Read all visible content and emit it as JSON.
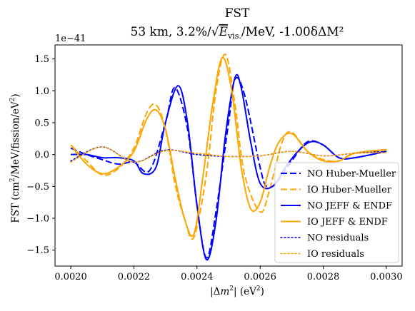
{
  "chart_data": {
    "type": "line",
    "title": "FST",
    "subtitle": "53 km, 3.2%/√E_vis./MeV, -1.00δΔM²",
    "subtitle_parts": {
      "prefix": "53 km, 3.2%/",
      "radicand_var": "E",
      "radicand_sub": "vis.",
      "radicand_unit": "/MeV",
      "suffix": ", -1.00δΔM²"
    },
    "xlabel": "|Δm²| (eV²)",
    "ylabel": "FST (cm²/MeV/fission/eV²)",
    "offset_text": "1e−41",
    "xlim": [
      0.00195,
      0.00305
    ],
    "ylim": [
      -1.75,
      1.72
    ],
    "x_ticks": [
      "0.0020",
      "0.0022",
      "0.0024",
      "0.0026",
      "0.0028",
      "0.0030"
    ],
    "x_tick_values": [
      0.002,
      0.0022,
      0.0024,
      0.0026,
      0.0028,
      0.003
    ],
    "y_ticks": [
      "−1.5",
      "−1.0",
      "−0.5",
      "0.0",
      "0.5",
      "1.0",
      "1.5"
    ],
    "y_tick_values": [
      -1.5,
      -1.0,
      -0.5,
      0.0,
      0.5,
      1.0,
      1.5
    ],
    "grid": false,
    "legend_position": "lower-right",
    "series": [
      {
        "name": "NO Huber-Mueller",
        "color": "#0000ff",
        "style": "dashed",
        "x": [
          0.002,
          0.00205,
          0.0021,
          0.00215,
          0.0022,
          0.00225,
          0.0023,
          0.00233,
          0.00237,
          0.0024,
          0.00243,
          0.00246,
          0.0025,
          0.00252,
          0.00255,
          0.0026,
          0.00262,
          0.00265,
          0.0027,
          0.00275,
          0.0028,
          0.00285,
          0.0029,
          0.003
        ],
        "y": [
          0.1,
          0.0,
          -0.08,
          -0.15,
          -0.12,
          -0.25,
          0.5,
          1.05,
          0.4,
          -0.8,
          -1.62,
          -0.9,
          0.5,
          1.18,
          0.95,
          -0.2,
          -0.5,
          -0.45,
          -0.1,
          0.2,
          0.15,
          -0.05,
          -0.05,
          0.05
        ]
      },
      {
        "name": "IO Huber-Mueller",
        "color": "#ffa500",
        "style": "dashed",
        "x": [
          0.002,
          0.00205,
          0.0021,
          0.00215,
          0.0022,
          0.00224,
          0.00227,
          0.0023,
          0.00233,
          0.00236,
          0.00239,
          0.00243,
          0.00246,
          0.00249,
          0.00252,
          0.00255,
          0.0026,
          0.00263,
          0.00267,
          0.0027,
          0.00275,
          0.0028,
          0.00285,
          0.0029,
          0.003
        ],
        "y": [
          0.15,
          -0.1,
          -0.32,
          -0.22,
          0.1,
          0.65,
          0.78,
          0.4,
          -0.45,
          -1.0,
          -1.3,
          -0.3,
          1.0,
          1.57,
          0.8,
          -0.3,
          -0.9,
          -0.55,
          0.2,
          0.35,
          0.05,
          -0.08,
          -0.1,
          0.02,
          0.05
        ]
      },
      {
        "name": "NO JEFF & ENDF",
        "color": "#0000ff",
        "style": "solid",
        "x": [
          0.002,
          0.00205,
          0.0021,
          0.00215,
          0.0022,
          0.00223,
          0.00227,
          0.0023,
          0.00234,
          0.00237,
          0.0024,
          0.00243,
          0.00246,
          0.00249,
          0.00252,
          0.00254,
          0.00257,
          0.0026,
          0.00264,
          0.00268,
          0.00272,
          0.00276,
          0.0028,
          0.00285,
          0.0029,
          0.003
        ],
        "y": [
          0.0,
          0.0,
          -0.05,
          -0.05,
          -0.1,
          -0.3,
          -0.2,
          0.5,
          1.08,
          0.5,
          -0.8,
          -1.65,
          -1.05,
          0.3,
          1.2,
          1.05,
          0.2,
          -0.45,
          -0.5,
          -0.2,
          0.05,
          0.2,
          0.15,
          -0.05,
          -0.05,
          0.05
        ]
      },
      {
        "name": "IO JEFF & ENDF",
        "color": "#ffa500",
        "style": "solid",
        "x": [
          0.002,
          0.00205,
          0.0021,
          0.00215,
          0.0022,
          0.00224,
          0.00227,
          0.0023,
          0.00233,
          0.00236,
          0.00239,
          0.00242,
          0.00245,
          0.00248,
          0.00251,
          0.00254,
          0.00257,
          0.0026,
          0.00263,
          0.00266,
          0.0027,
          0.00275,
          0.0028,
          0.00285,
          0.0029,
          0.003
        ],
        "y": [
          0.15,
          -0.15,
          -0.3,
          -0.2,
          0.05,
          0.55,
          0.7,
          0.4,
          -0.35,
          -1.0,
          -1.25,
          -0.3,
          0.8,
          1.52,
          1.0,
          -0.2,
          -0.85,
          -0.75,
          -0.2,
          0.2,
          0.33,
          0.05,
          -0.1,
          -0.1,
          0.02,
          0.08
        ]
      },
      {
        "name": "NO residuals",
        "color": "#0000cc",
        "style": "dotted",
        "x": [
          0.002,
          0.0021,
          0.0022,
          0.0023,
          0.0024,
          0.0025,
          0.0026,
          0.0027,
          0.0028,
          0.0029,
          0.003
        ],
        "y": [
          -0.1,
          0.12,
          -0.12,
          0.07,
          0.0,
          -0.03,
          -0.02,
          0.05,
          -0.02,
          0.02,
          0.05
        ]
      },
      {
        "name": "IO residuals",
        "color": "#ffa500",
        "style": "dotted",
        "x": [
          0.002,
          0.0021,
          0.0022,
          0.0023,
          0.0024,
          0.0025,
          0.0026,
          0.0027,
          0.0028,
          0.0029,
          0.003
        ],
        "y": [
          -0.12,
          0.12,
          -0.12,
          0.06,
          0.02,
          -0.03,
          -0.02,
          0.05,
          -0.02,
          0.02,
          0.03
        ]
      }
    ]
  }
}
